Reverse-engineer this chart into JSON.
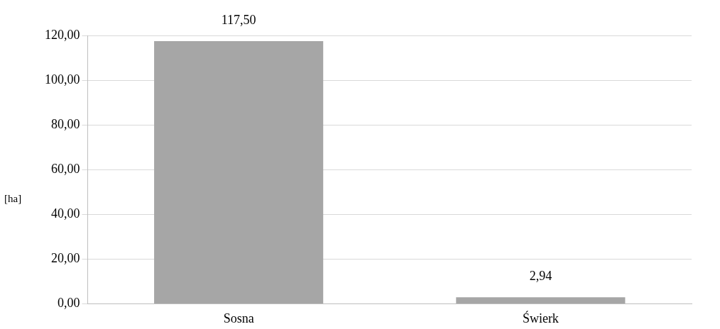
{
  "chart_data": {
    "type": "bar",
    "ylabel": "[ha]",
    "categories": [
      "Sosna",
      "Świerk"
    ],
    "values": [
      117.5,
      2.94
    ],
    "color": "#a6a6a6",
    "value_labels": [
      "117,50",
      "2,94"
    ],
    "ylim": [
      0,
      120
    ],
    "yticks": [
      {
        "value": 0,
        "label": "0,00"
      },
      {
        "value": 20,
        "label": "20,00"
      },
      {
        "value": 40,
        "label": "40,00"
      },
      {
        "value": 60,
        "label": "60,00"
      },
      {
        "value": 80,
        "label": "80,00"
      },
      {
        "value": 100,
        "label": "100,00"
      },
      {
        "value": 120,
        "label": "120,00"
      }
    ],
    "grid": "y",
    "legend": false
  }
}
